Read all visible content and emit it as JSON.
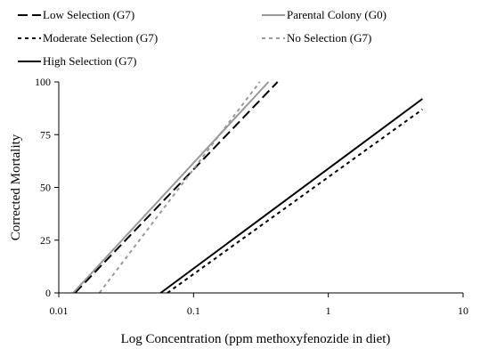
{
  "chart_data": {
    "type": "line",
    "title": "",
    "xlabel": "Log Concentration (ppm methoxyfenozide in diet)",
    "ylabel": "Corrected Mortality",
    "x_scale": "log",
    "xlim": [
      0.01,
      10
    ],
    "ylim": [
      0,
      100
    ],
    "x_ticks": [
      0.01,
      0.1,
      1,
      10
    ],
    "x_tick_labels": [
      "0.01",
      "0.1",
      "1",
      "10"
    ],
    "y_ticks": [
      0,
      25,
      50,
      75,
      100
    ],
    "y_tick_labels": [
      "0",
      "25",
      "50",
      "75",
      "100"
    ],
    "grid": false,
    "legend_position": "top",
    "series": [
      {
        "name": "Low Selection (G7)",
        "style": "long-dash",
        "color": "#000000",
        "x": [
          0.0132,
          0.42
        ],
        "y": [
          0,
          100
        ]
      },
      {
        "name": "Parental Colony (G0)",
        "style": "solid",
        "color": "#999999",
        "x": [
          0.0128,
          0.36
        ],
        "y": [
          0,
          100
        ]
      },
      {
        "name": "Moderate Selection (G7)",
        "style": "short-dash",
        "color": "#000000",
        "x": [
          0.064,
          5.0
        ],
        "y": [
          0,
          87
        ]
      },
      {
        "name": "No Selection (G7)",
        "style": "short-dash",
        "color": "#999999",
        "x": [
          0.02,
          0.31
        ],
        "y": [
          0,
          100
        ]
      },
      {
        "name": "High Selection (G7)",
        "style": "solid",
        "color": "#000000",
        "x": [
          0.057,
          5.0
        ],
        "y": [
          0,
          92
        ]
      }
    ]
  }
}
